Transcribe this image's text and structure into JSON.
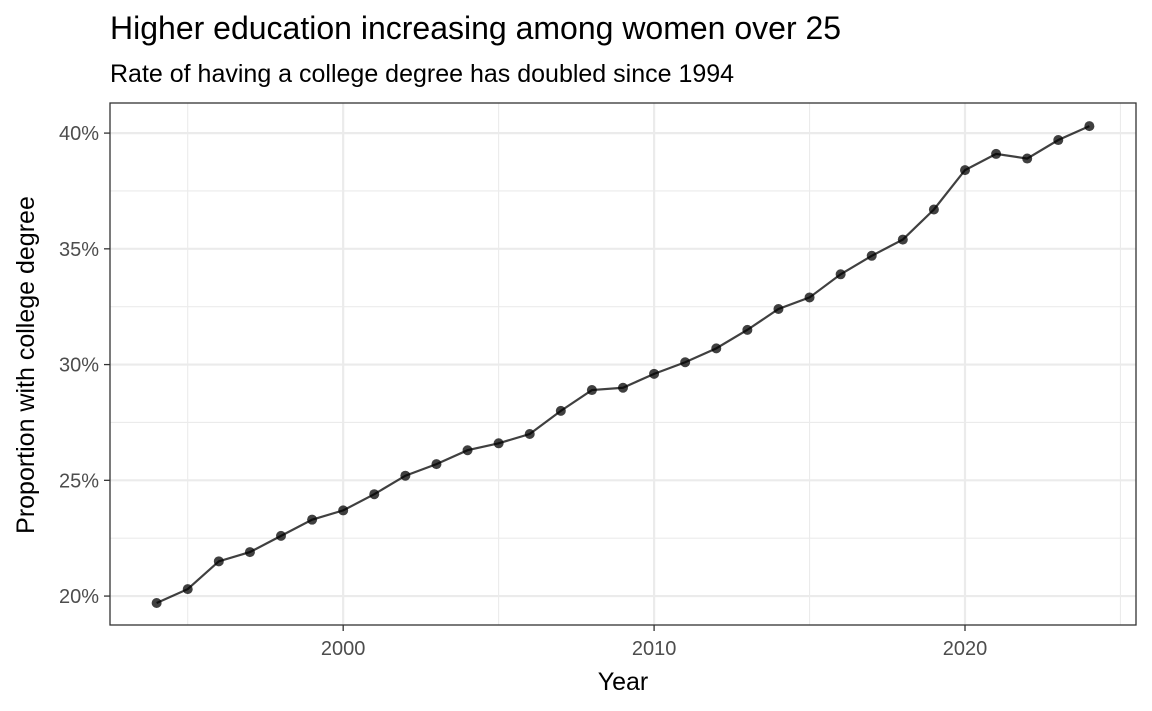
{
  "chart_data": {
    "type": "line",
    "title": "Higher education increasing among women over 25",
    "subtitle": "Rate of having a college degree has doubled since 1994",
    "xlabel": "Year",
    "ylabel": "Proportion with college degree",
    "xlim": [
      1992.5,
      2025.5
    ],
    "ylim": [
      0.1875,
      0.413
    ],
    "x_ticks": [
      2000,
      2010,
      2020
    ],
    "x_tick_labels": [
      "2000",
      "2010",
      "2020"
    ],
    "y_ticks": [
      0.2,
      0.25,
      0.3,
      0.35,
      0.4
    ],
    "y_tick_labels": [
      "20%",
      "25%",
      "30%",
      "35%",
      "40%"
    ],
    "x_minor_ticks": [
      1995,
      2005,
      2015,
      2025
    ],
    "y_minor_ticks": [
      0.225,
      0.275,
      0.325,
      0.375
    ],
    "grid": true,
    "legend": "none",
    "series": [
      {
        "x": [
          1994,
          1995,
          1996,
          1997,
          1998,
          1999,
          2000,
          2001,
          2002,
          2003,
          2004,
          2005,
          2006,
          2007,
          2008,
          2009,
          2010,
          2011,
          2012,
          2013,
          2014,
          2015,
          2016,
          2017,
          2018,
          2019,
          2020,
          2021,
          2022,
          2023,
          2024
        ],
        "values": [
          0.197,
          0.203,
          0.215,
          0.219,
          0.226,
          0.233,
          0.237,
          0.244,
          0.252,
          0.257,
          0.263,
          0.266,
          0.27,
          0.28,
          0.289,
          0.29,
          0.296,
          0.301,
          0.307,
          0.315,
          0.324,
          0.329,
          0.339,
          0.347,
          0.354,
          0.367,
          0.384,
          0.391,
          0.389,
          0.397,
          0.403
        ]
      }
    ]
  }
}
